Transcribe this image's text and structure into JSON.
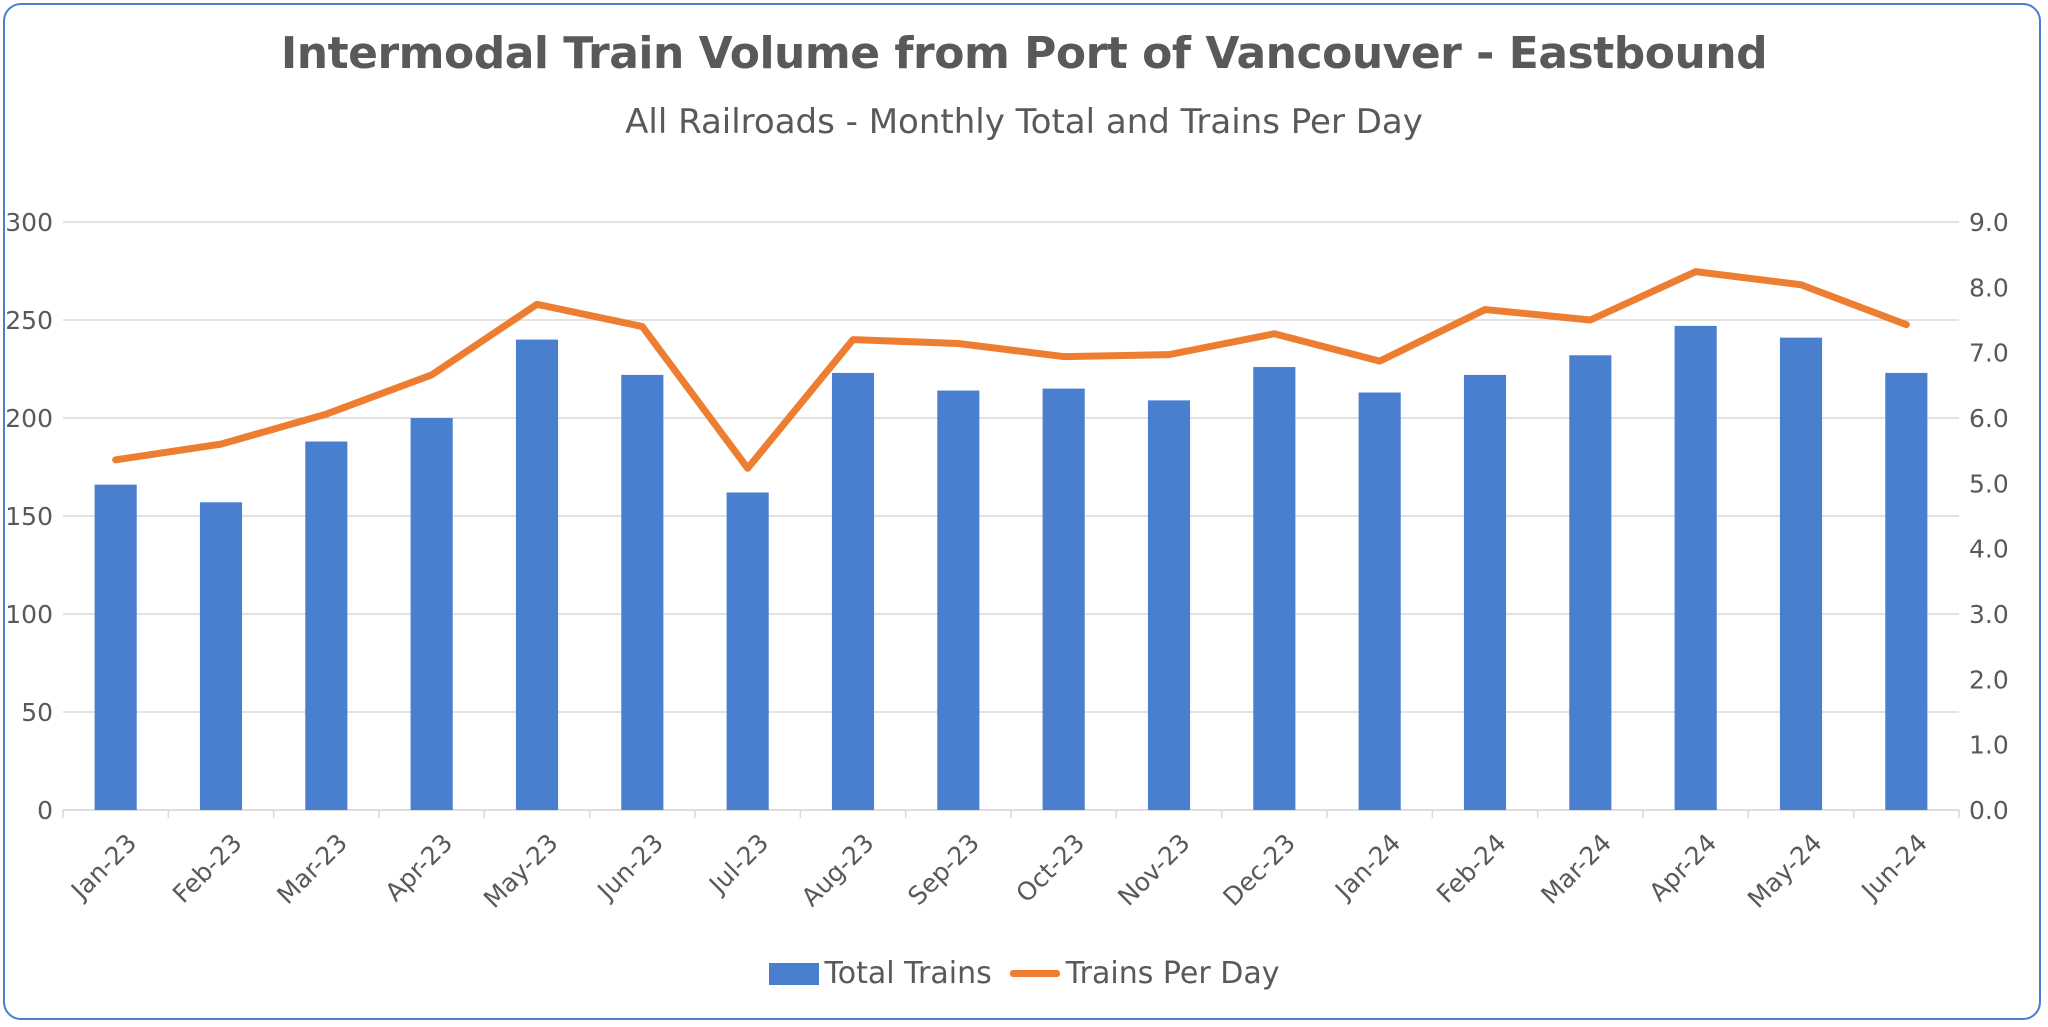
{
  "chart_data": {
    "type": "bar+line",
    "title": "Intermodal Train Volume from Port of Vancouver - Eastbound",
    "subtitle": "All Railroads - Monthly Total and Trains Per Day",
    "categories": [
      "Jan-23",
      "Feb-23",
      "Mar-23",
      "Apr-23",
      "May-23",
      "Jun-23",
      "Jul-23",
      "Aug-23",
      "Sep-23",
      "Oct-23",
      "Nov-23",
      "Dec-23",
      "Jan-24",
      "Feb-24",
      "Mar-24",
      "Apr-24",
      "May-24",
      "Jun-24"
    ],
    "series": [
      {
        "name": "Total Trains",
        "type": "bar",
        "axis": "left",
        "color": "#4a7fcf",
        "values": [
          166,
          157,
          188,
          200,
          240,
          222,
          162,
          223,
          214,
          215,
          209,
          226,
          213,
          222,
          232,
          247,
          241,
          223
        ]
      },
      {
        "name": "Trains Per Day",
        "type": "line",
        "axis": "right",
        "color": "#ed7d31",
        "values": [
          5.36,
          5.6,
          6.06,
          6.66,
          7.74,
          7.4,
          5.23,
          7.2,
          7.14,
          6.94,
          6.97,
          7.29,
          6.87,
          7.66,
          7.5,
          8.24,
          8.04,
          7.43
        ]
      }
    ],
    "y_left": {
      "range": [
        0,
        300
      ],
      "ticks": [
        "0",
        "50",
        "100",
        "150",
        "200",
        "250",
        "300"
      ]
    },
    "y_right": {
      "range": [
        0,
        9
      ],
      "ticks": [
        "0.0",
        "1.0",
        "2.0",
        "3.0",
        "4.0",
        "5.0",
        "6.0",
        "7.0",
        "8.0",
        "9.0"
      ]
    },
    "grid": true,
    "legend": "bottom"
  }
}
